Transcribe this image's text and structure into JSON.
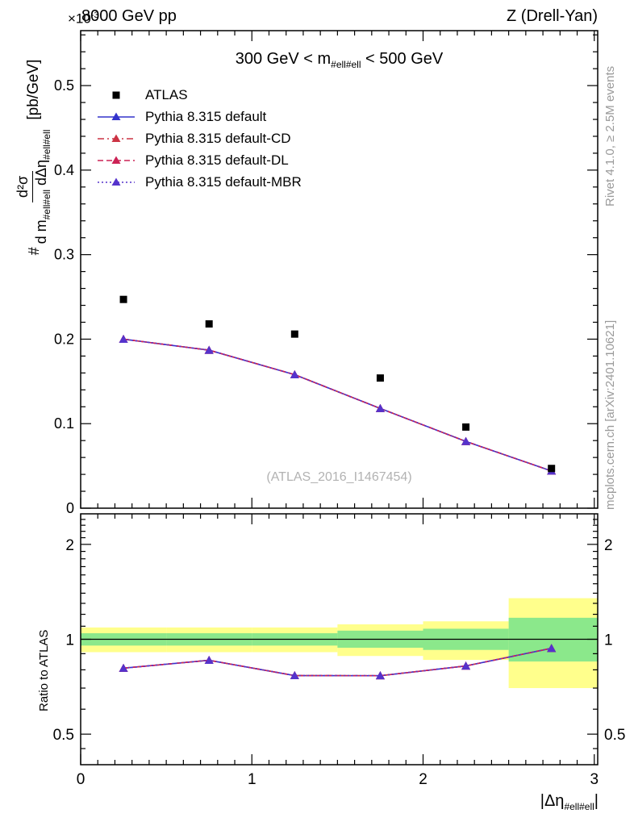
{
  "header": {
    "multiplier_base": "×10",
    "multiplier_exp": "-3",
    "left": "8000 GeV pp",
    "right": "Z (Drell-Yan)"
  },
  "chart_data": {
    "type": "line",
    "title_parts": {
      "pre": "300 GeV < m",
      "sub": "#ell#ell",
      "post": " < 500 GeV"
    },
    "watermark": "(ATLAS_2016_I1467454)",
    "side_text_top": "Rivet 4.1.0, ≥ 2.5M events",
    "side_text_bottom": "mcplots.cern.ch [arXiv:2401.10621]",
    "ylabel_parts": {
      "prefix": "#",
      "numerator": "d²σ",
      "den_pre": "d m",
      "den_sub1": "#ell#ell",
      "den_mid": " dΔη",
      "den_sub2": "#ell#ell",
      "units": "[pb/GeV]"
    },
    "ratio_ylabel": "Ratio to ATLAS",
    "xlabel_parts": {
      "pre": "|Δη",
      "sub": "#ell#ell",
      "post": "|"
    },
    "x": [
      0.25,
      0.75,
      1.25,
      1.75,
      2.25,
      2.75
    ],
    "xlim": [
      0,
      3.02
    ],
    "main_ylim": [
      0,
      0.565
    ],
    "ratio_ylim": [
      0.4,
      2.5
    ],
    "ratio_scale": "log",
    "ratio_reference": 1,
    "xticks": {
      "values": [
        0,
        1,
        2,
        3
      ],
      "labels": [
        "0",
        "1",
        "2",
        "3"
      ]
    },
    "main_yticks": {
      "values": [
        0,
        0.1,
        0.2,
        0.3,
        0.4,
        0.5
      ],
      "labels": [
        "0",
        "0.1",
        "0.2",
        "0.3",
        "0.4",
        "0.5"
      ]
    },
    "ratio_yticks": {
      "values": [
        0.5,
        1,
        2
      ],
      "labels": [
        "0.5",
        "1",
        "2"
      ]
    },
    "series": [
      {
        "id": "atlas",
        "label": "ATLAS",
        "kind": "data",
        "marker": "square",
        "color": "#000000",
        "dash": "none",
        "values": [
          0.247,
          0.218,
          0.206,
          0.154,
          0.096,
          0.047
        ]
      },
      {
        "id": "default",
        "label": "Pythia 8.315 default",
        "kind": "mc",
        "marker": "triangle",
        "color": "#3333cc",
        "dash": "solid",
        "values": [
          0.2,
          0.187,
          0.158,
          0.118,
          0.079,
          0.044
        ]
      },
      {
        "id": "default-cd",
        "label": "Pythia 8.315 default-CD",
        "kind": "mc",
        "marker": "triangle",
        "color": "#cc3344",
        "dash": "dashdot",
        "values": [
          0.2,
          0.187,
          0.158,
          0.118,
          0.079,
          0.044
        ]
      },
      {
        "id": "default-dl",
        "label": "Pythia 8.315 default-DL",
        "kind": "mc",
        "marker": "triangle",
        "color": "#cc2255",
        "dash": "dashed",
        "values": [
          0.2,
          0.187,
          0.158,
          0.118,
          0.079,
          0.044
        ]
      },
      {
        "id": "default-mbr",
        "label": "Pythia 8.315 default-MBR",
        "kind": "mc",
        "marker": "triangle",
        "color": "#5533cc",
        "dash": "dotted",
        "values": [
          0.2,
          0.187,
          0.158,
          0.118,
          0.079,
          0.044
        ]
      }
    ],
    "bands": {
      "bins": [
        [
          0,
          0.5
        ],
        [
          0.5,
          1
        ],
        [
          1,
          1.5
        ],
        [
          1.5,
          2
        ],
        [
          2,
          2.5
        ],
        [
          2.5,
          3.02
        ]
      ],
      "yellow": [
        [
          0.91,
          1.09
        ],
        [
          0.91,
          1.09
        ],
        [
          0.91,
          1.09
        ],
        [
          0.885,
          1.115
        ],
        [
          0.86,
          1.14
        ],
        [
          0.7,
          1.35
        ]
      ],
      "green": [
        [
          0.955,
          1.045
        ],
        [
          0.955,
          1.045
        ],
        [
          0.955,
          1.045
        ],
        [
          0.94,
          1.065
        ],
        [
          0.925,
          1.08
        ],
        [
          0.85,
          1.17
        ]
      ],
      "yellow_color": "#ffff8c",
      "green_color": "#8be88b"
    }
  }
}
